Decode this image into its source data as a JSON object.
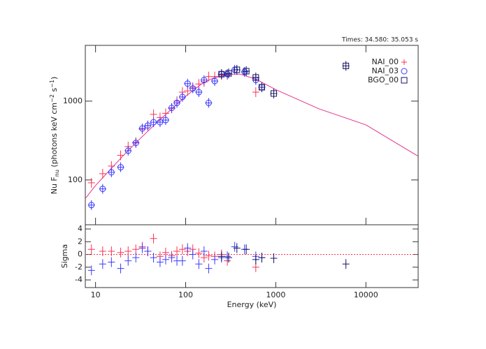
{
  "chart_data": [
    {
      "type": "scatter",
      "title": "Times: 34.580: 35.053 s",
      "ylabel": [
        "Nu F",
        "nu",
        " (photons keV cm",
        "−2",
        " s",
        "−1",
        ")"
      ],
      "xscale": "log",
      "yscale": "log",
      "xlim": [
        7.7,
        38000
      ],
      "ylim": [
        27,
        5100
      ],
      "yticks": [
        100,
        1000
      ],
      "legend": "top-right",
      "series": [
        {
          "name": "NAI_00",
          "color": "#ff3050",
          "marker": "plus",
          "x": [
            9,
            12,
            15,
            19,
            23,
            28,
            33,
            38,
            44,
            52,
            60,
            70,
            80,
            92,
            105,
            120,
            140,
            160,
            180,
            210,
            250,
            290,
            600
          ],
          "values": [
            92,
            120,
            150,
            205,
            265,
            300,
            440,
            490,
            680,
            620,
            700,
            810,
            1000,
            1300,
            1350,
            1500,
            1650,
            1750,
            2050,
            2050,
            2150,
            2150,
            1300
          ]
        },
        {
          "name": "NAI_03",
          "color": "#3a3aff",
          "marker": "circle",
          "x": [
            9,
            12,
            15,
            19,
            23,
            28,
            33,
            38,
            44,
            52,
            60,
            70,
            80,
            92,
            105,
            120,
            140,
            160,
            180,
            210,
            250,
            290,
            350,
            450,
            600,
            700
          ],
          "values": [
            48,
            77,
            125,
            145,
            235,
            295,
            450,
            490,
            540,
            540,
            575,
            820,
            950,
            1130,
            1670,
            1450,
            1300,
            1850,
            950,
            1800,
            2200,
            2200,
            2500,
            2350,
            1850,
            1500
          ]
        },
        {
          "name": "BGO_00",
          "color": "#141460",
          "marker": "square",
          "x": [
            250,
            300,
            370,
            470,
            600,
            700,
            950,
            6000
          ],
          "values": [
            2200,
            2250,
            2500,
            2400,
            2000,
            1500,
            1250,
            2800
          ]
        }
      ],
      "model": {
        "color": "#e8308a",
        "x": [
          7.7,
          10,
          20,
          30,
          50,
          100,
          150,
          200,
          300,
          400,
          600,
          1000,
          3000,
          10000,
          38000
        ],
        "values": [
          58,
          85,
          200,
          320,
          560,
          1150,
          1650,
          1950,
          2200,
          2200,
          1900,
          1400,
          800,
          500,
          200
        ]
      }
    },
    {
      "type": "scatter",
      "ylabel": "Sigma",
      "xlabel": "Energy (keV)",
      "xscale": "log",
      "xlim": [
        7.7,
        38000
      ],
      "xticks": [
        10,
        100,
        1000,
        10000
      ],
      "ylim": [
        -5.2,
        4.66
      ],
      "yticks": [
        4,
        2,
        0,
        -2,
        -4
      ],
      "zero_line_color": "#ff3050",
      "series": [
        {
          "color": "#ff3050",
          "x": [
            9,
            12,
            15,
            19,
            23,
            28,
            33,
            38,
            44,
            52,
            60,
            70,
            80,
            92,
            105,
            120,
            140,
            160,
            180,
            210,
            250,
            290,
            600
          ],
          "values": [
            0.8,
            0.5,
            0.5,
            0.3,
            0.5,
            0.8,
            1.2,
            0.5,
            2.5,
            -0.3,
            0.3,
            -0.2,
            0.5,
            0.8,
            0.5,
            0.8,
            0.2,
            -0.5,
            -0.2,
            -0.3,
            0.0,
            -1.0,
            -2.0
          ]
        },
        {
          "color": "#3a3aff",
          "x": [
            9,
            12,
            15,
            19,
            23,
            28,
            33,
            38,
            44,
            52,
            60,
            70,
            80,
            92,
            105,
            120,
            140,
            160,
            180,
            210,
            250,
            290,
            350,
            450,
            600,
            700
          ],
          "values": [
            -2.5,
            -1.5,
            -1.2,
            -2.2,
            -1.0,
            -0.5,
            1.0,
            0.5,
            -0.5,
            -1.2,
            -0.8,
            -0.5,
            -1.0,
            -1.0,
            1.0,
            0.0,
            -1.5,
            0.5,
            -2.2,
            -0.8,
            -0.5,
            -0.3,
            1.2,
            0.8,
            -0.3,
            -0.5
          ]
        },
        {
          "color": "#141460",
          "x": [
            250,
            300,
            370,
            470,
            600,
            700,
            950,
            6000
          ],
          "values": [
            -0.3,
            -0.5,
            1.0,
            0.8,
            -0.8,
            -0.5,
            -0.6,
            -1.5
          ]
        }
      ]
    }
  ]
}
